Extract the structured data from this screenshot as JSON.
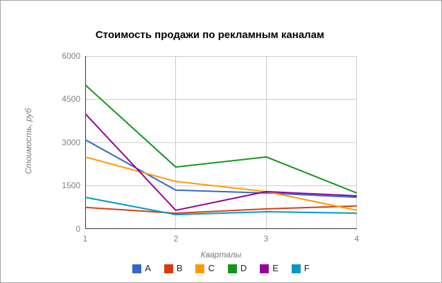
{
  "window": {
    "background": "#ffffff",
    "border_color": "#a3a3a3"
  },
  "colors": {
    "grid": "#cccccc",
    "axis": "#333333",
    "tick_text": "#808080",
    "axis_title_text": "#7a7a7a",
    "title_text": "#000000",
    "legend_text": "#222222"
  },
  "chart_data": {
    "type": "line",
    "title": "Стоимость продажи по рекламным каналам",
    "xlabel": "Кварталы",
    "ylabel": "Стоимость, руб",
    "x": [
      1,
      2,
      3,
      4
    ],
    "x_tick_labels": [
      "1",
      "2",
      "3",
      "4"
    ],
    "y_ticks": [
      0,
      1500,
      3000,
      4500,
      6000
    ],
    "y_tick_labels": [
      "0",
      "1500",
      "3000",
      "4500",
      "6000"
    ],
    "ylim": [
      0,
      6000
    ],
    "grid": true,
    "legend_position": "bottom",
    "series": [
      {
        "name": "A",
        "color": "#3366CC",
        "values": [
          3100,
          1350,
          1250,
          1100
        ]
      },
      {
        "name": "B",
        "color": "#DC3912",
        "values": [
          750,
          550,
          700,
          800
        ]
      },
      {
        "name": "C",
        "color": "#FF9900",
        "values": [
          2500,
          1650,
          1300,
          650
        ]
      },
      {
        "name": "D",
        "color": "#109618",
        "values": [
          5000,
          2150,
          2500,
          1250
        ]
      },
      {
        "name": "E",
        "color": "#990099",
        "values": [
          4000,
          650,
          1300,
          1150
        ]
      },
      {
        "name": "F",
        "color": "#0099C6",
        "values": [
          1100,
          500,
          600,
          550
        ]
      }
    ]
  }
}
